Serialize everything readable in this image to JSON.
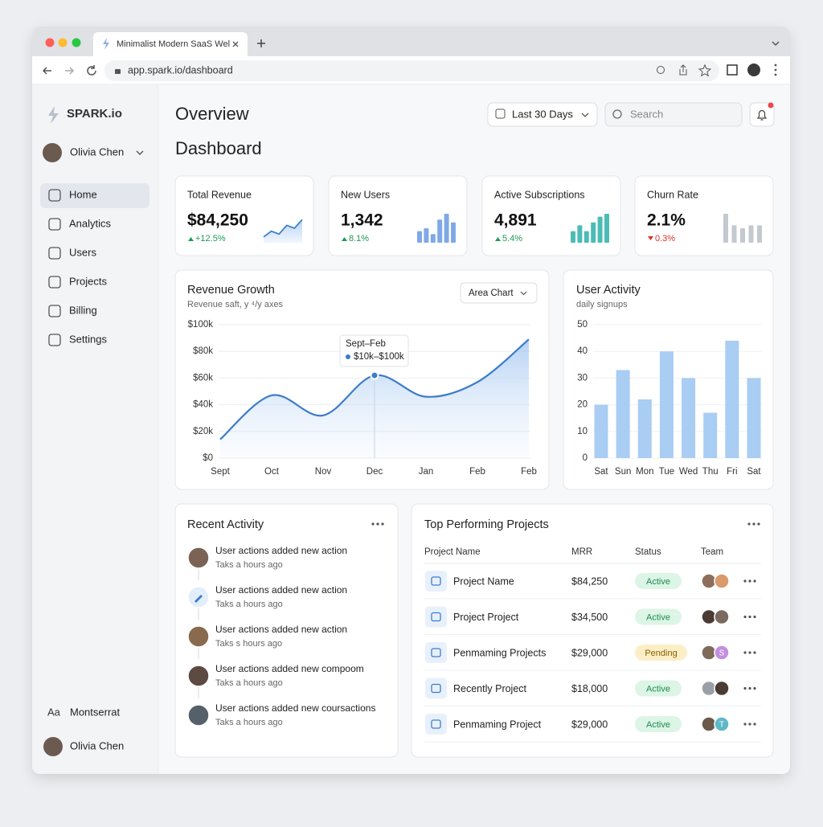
{
  "browser": {
    "tab_title": "Minimalist Modern SaaS Wel",
    "url": "app.spark.io/dashboard"
  },
  "sidebar": {
    "brand": "SPARK.io",
    "user": "Olivia Chen",
    "nav": [
      "Home",
      "Analytics",
      "Users",
      "Projects",
      "Billing",
      "Settings"
    ],
    "font_icon": "Aa",
    "font_name": "Montserrat",
    "footer_user": "Olivia Chen"
  },
  "header": {
    "title": "Overview",
    "subtitle": "Dashboard",
    "date_range": "Last 30 Days",
    "search": "Search"
  },
  "kpis": [
    {
      "label": "Total Revenue",
      "value": "$84,250",
      "change": "+12.5%",
      "trend": "up",
      "spark_type": "area",
      "spark_color": "#3b82c4",
      "spark": [
        2,
        4,
        3,
        6,
        5,
        8
      ]
    },
    {
      "label": "New Users",
      "value": "1,342",
      "change": "8.1%",
      "trend": "up",
      "spark_type": "bar",
      "spark_color": "#7fa9e6",
      "spark": [
        4,
        5,
        3,
        8,
        10,
        7
      ]
    },
    {
      "label": "Active Subscriptions",
      "value": "4,891",
      "change": "5.4%",
      "trend": "up",
      "spark_type": "bar",
      "spark_color": "#4cbcb6",
      "spark": [
        4,
        6,
        4,
        7,
        9,
        10
      ]
    },
    {
      "label": "Churn Rate",
      "value": "2.1%",
      "change": "0.3%",
      "trend": "down",
      "spark_type": "bar",
      "spark_color": "#c4c8cf",
      "spark": [
        10,
        6,
        5,
        6,
        6
      ]
    }
  ],
  "chart_data": [
    {
      "type": "area",
      "title": "Revenue Growth",
      "subtitle": "Revenue saft, y ⁴/y axes",
      "control": "Area Chart",
      "color": "#3d7cc9",
      "categories": [
        "Sept",
        "Oct",
        "Nov",
        "Dec",
        "Jan",
        "Feb",
        "Feb"
      ],
      "values": [
        14000,
        47000,
        32000,
        62000,
        46000,
        57000,
        89000
      ],
      "ylim": [
        0,
        100000
      ],
      "yticks": [
        {
          "value": 0,
          "label": "$0"
        },
        {
          "value": 20000,
          "label": "$20k"
        },
        {
          "value": 40000,
          "label": "$40k"
        },
        {
          "value": 60000,
          "label": "$60k"
        },
        {
          "value": 80000,
          "label": "$80k"
        },
        {
          "value": 100000,
          "label": "$100k"
        }
      ],
      "grid": true,
      "tooltip": {
        "title": "Sept–Feb",
        "text": "$10k–$100k"
      }
    },
    {
      "type": "bar",
      "title": "User Activity",
      "subtitle": "daily signups",
      "color": "#a9cdf3",
      "categories": [
        "Sat",
        "Sun",
        "Mon",
        "Tue",
        "Wed",
        "Thu",
        "Fri",
        "Sat"
      ],
      "values": [
        20,
        33,
        22,
        40,
        30,
        17,
        44,
        30
      ],
      "ylim": [
        0,
        50
      ],
      "yticks": [
        0,
        10,
        20,
        30,
        40,
        50
      ],
      "grid": true
    }
  ],
  "recent_activity": {
    "title": "Recent Activity",
    "items": [
      {
        "text": "User actions added new action",
        "time": "Taks a hours ago"
      },
      {
        "text": "User actions added new action",
        "time": "Taks a hours ago"
      },
      {
        "text": "User actions added new action",
        "time": "Taks s hours ago"
      },
      {
        "text": "User actions added new compoom",
        "time": "Taks a hours ago"
      },
      {
        "text": "User actions added new coursactions",
        "time": "Taks a hours ago"
      }
    ]
  },
  "projects": {
    "title": "Top Performing Projects",
    "columns": [
      "Project Name",
      "MRR",
      "Status",
      "Team"
    ],
    "rows": [
      {
        "name": "Project Name",
        "mrr": "$84,250",
        "status": "Active",
        "status_color": "#1f8a4c",
        "status_bg": "#dcf5e6"
      },
      {
        "name": "Project Project",
        "mrr": "$34,500",
        "status": "Active",
        "status_color": "#1f8a4c",
        "status_bg": "#dcf5e6"
      },
      {
        "name": "Penmaming Projects",
        "mrr": "$29,000",
        "status": "Pending",
        "status_color": "#8a5d00",
        "status_bg": "#fcefc7",
        "badge": "S"
      },
      {
        "name": "Recently Project",
        "mrr": "$18,000",
        "status": "Active",
        "status_color": "#1f8a4c",
        "status_bg": "#dcf5e6"
      },
      {
        "name": "Penmaming Project",
        "mrr": "$29,000",
        "status": "Active",
        "status_color": "#1f8a4c",
        "status_bg": "#dcf5e6",
        "badge": "T"
      }
    ]
  }
}
